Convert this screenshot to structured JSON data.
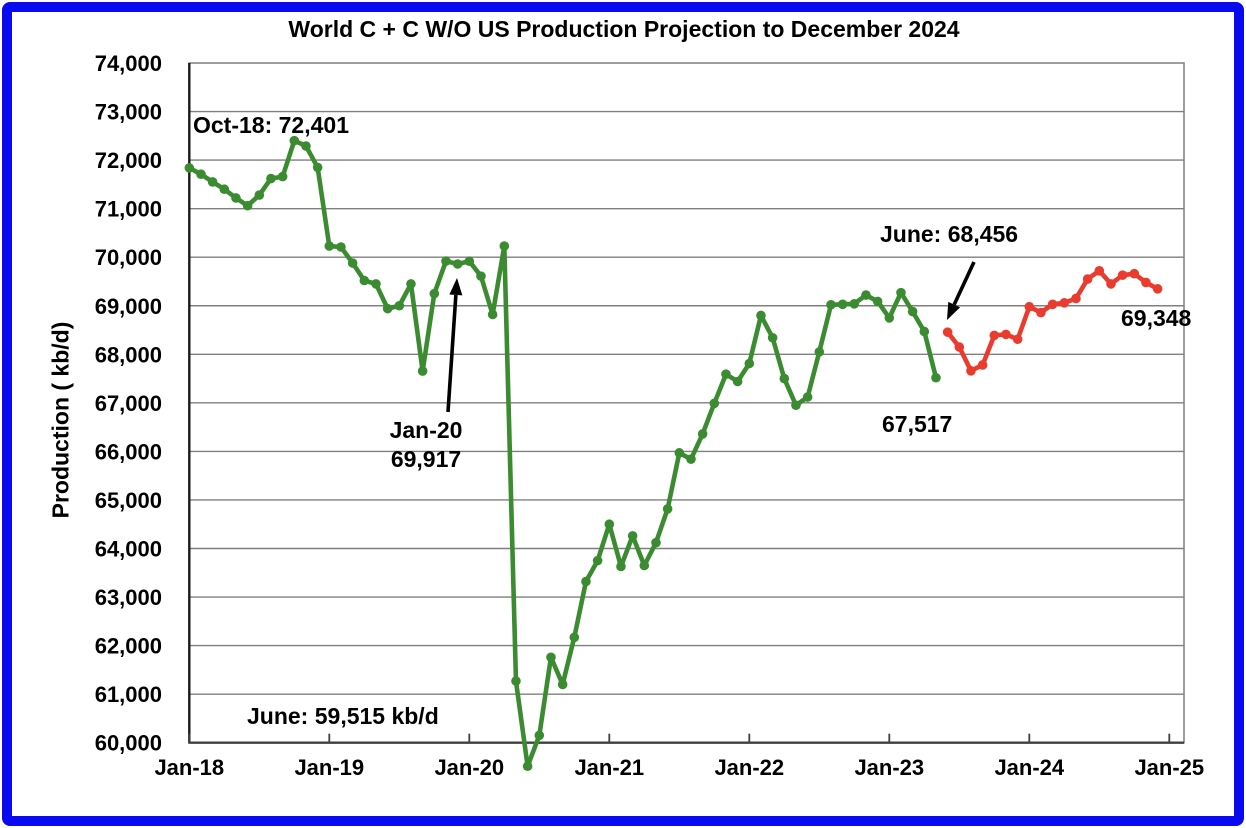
{
  "title": "World C + C W/O US Production Projection to December 2024",
  "y_axis": {
    "label": "Production ( kb/d)",
    "min": 60000,
    "max": 74000,
    "step": 1000,
    "tick_labels": [
      "60,000",
      "61,000",
      "62,000",
      "63,000",
      "64,000",
      "65,000",
      "66,000",
      "67,000",
      "68,000",
      "69,000",
      "70,000",
      "71,000",
      "72,000",
      "73,000",
      "74,000"
    ]
  },
  "x_axis": {
    "tick_labels": [
      "Jan-18",
      "Jan-19",
      "Jan-20",
      "Jan-21",
      "Jan-22",
      "Jan-23",
      "Jan-24",
      "Jan-25"
    ]
  },
  "annotations": {
    "oct18": "Oct-18: 72,401",
    "jan20_line1": "Jan-20",
    "jan20_line2": "69,917",
    "june2020": "June: 59,515 kb/d",
    "june2023": "June: 68,456",
    "may2023": "67,517",
    "dec2024": "69,348"
  },
  "colors": {
    "historical": "#3b8c31",
    "projection": "#e93c2f",
    "gridline": "#7f7f7f",
    "axis": "#404040",
    "frame_blue": "#0a0af0",
    "text": "#000000"
  },
  "chart_data": {
    "type": "line",
    "title": "World C + C W/O US Production Projection to December 2024",
    "xlabel": "",
    "ylabel": "Production ( kb/d)",
    "ylim": [
      60000,
      74000
    ],
    "grid": "horizontal",
    "legend": "none",
    "frequency": "monthly",
    "x_tick_labels": [
      "Jan-18",
      "Jan-19",
      "Jan-20",
      "Jan-21",
      "Jan-22",
      "Jan-23",
      "Jan-24",
      "Jan-25"
    ],
    "series": [
      {
        "name": "historical",
        "color": "#3b8c31",
        "start_month": "2018-01",
        "start_index": 0,
        "values": [
          71840,
          71710,
          71550,
          71400,
          71220,
          71060,
          71280,
          71620,
          71660,
          72401,
          72290,
          71850,
          70230,
          70210,
          69880,
          69520,
          69450,
          68940,
          69000,
          69450,
          67655,
          69250,
          69920,
          69860,
          69917,
          69610,
          68820,
          70230,
          61270,
          59515,
          60150,
          61760,
          61200,
          62170,
          63320,
          63750,
          64500,
          63630,
          64260,
          63650,
          64120,
          64815,
          65970,
          65840,
          66360,
          66990,
          67590,
          67440,
          67810,
          68800,
          68340,
          67500,
          66950,
          67120,
          68050,
          69020,
          69030,
          69040,
          69220,
          69090,
          68750,
          69270,
          68880,
          68470,
          67517
        ]
      },
      {
        "name": "projection",
        "color": "#e93c2f",
        "start_month": "2023-06",
        "start_index": 65,
        "values": [
          68456,
          68150,
          67660,
          67780,
          68390,
          68410,
          68310,
          68980,
          68860,
          69030,
          69060,
          69150,
          69550,
          69720,
          69450,
          69630,
          69660,
          69480,
          69348
        ]
      }
    ],
    "point_annotations": [
      {
        "text": "Oct-18: 72,401",
        "month": "2018-10",
        "value": 72401
      },
      {
        "text": "Jan-20 69,917",
        "month": "2020-01",
        "value": 69917
      },
      {
        "text": "June: 59,515 kb/d",
        "month": "2020-06",
        "value": 59515
      },
      {
        "text": "June: 68,456",
        "month": "2023-06",
        "value": 68456
      },
      {
        "text": "67,517",
        "month": "2023-05",
        "value": 67517
      },
      {
        "text": "69,348",
        "month": "2024-12",
        "value": 69348
      }
    ]
  }
}
